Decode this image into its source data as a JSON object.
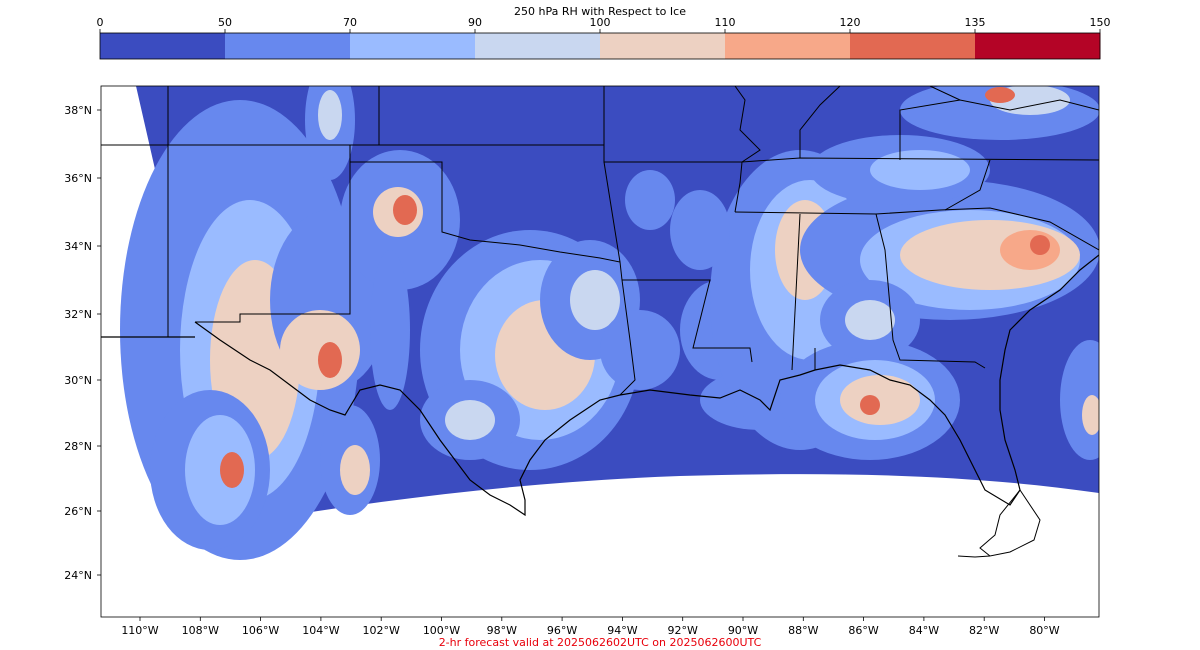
{
  "colorbar": {
    "title": "250 hPa RH with Respect to Ice",
    "ticks": [
      "0",
      "50",
      "70",
      "90",
      "100",
      "110",
      "120",
      "135",
      "150"
    ],
    "colors": [
      "#3b4cc0",
      "#6788ee",
      "#9abbff",
      "#c9d7f0",
      "#edd1c2",
      "#f7a889",
      "#e26952",
      "#b40426"
    ]
  },
  "map": {
    "lat_labels": [
      "38°N",
      "36°N",
      "34°N",
      "32°N",
      "30°N",
      "28°N",
      "26°N",
      "24°N"
    ],
    "lon_labels": [
      "110°W",
      "108°W",
      "106°W",
      "104°W",
      "102°W",
      "100°W",
      "98°W",
      "96°W",
      "94°W",
      "92°W",
      "90°W",
      "88°W",
      "86°W",
      "84°W",
      "82°W",
      "80°W"
    ],
    "background_color": "#3b4cc0",
    "outline_color": "#000000"
  },
  "footer": {
    "text": "2-hr forecast valid at 2025062602UTC on 2025062600UTC"
  }
}
